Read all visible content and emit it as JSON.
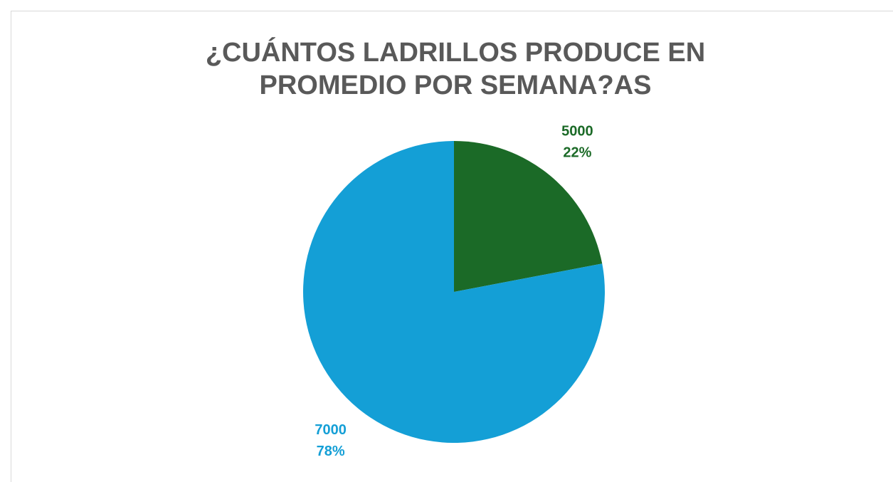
{
  "chart_data": {
    "type": "pie",
    "title": [
      "¿CUÁNTOS LADRILLOS PRODUCE EN",
      "PROMEDIO POR SEMANA?AS"
    ],
    "categories": [
      "5000",
      "7000"
    ],
    "values": [
      22,
      78
    ],
    "value_labels": [
      "22%",
      "78%"
    ],
    "colors": [
      "#1b6a27",
      "#149fd6"
    ]
  }
}
